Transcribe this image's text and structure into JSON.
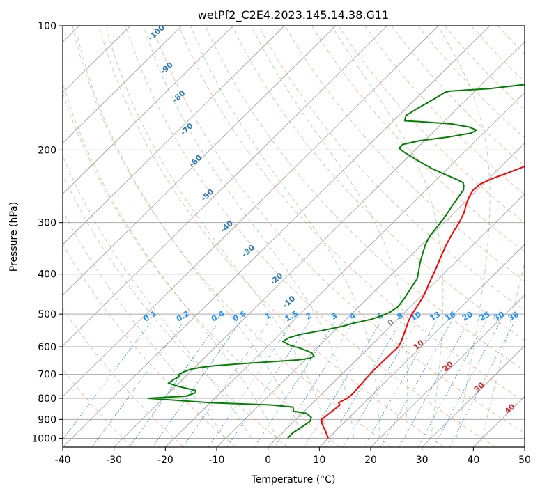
{
  "chart_data": {
    "type": "line",
    "title": "wetPf2_C2E4.2023.145.14.38.G11",
    "xlabel": "Temperature (°C)",
    "ylabel": "Pressure (hPa)",
    "xlim": [
      -40,
      50
    ],
    "ylim_hpa": [
      1050,
      100
    ],
    "y_scale": "log",
    "skew": "skew-T",
    "x_ticks": [
      -40,
      -30,
      -20,
      -10,
      0,
      10,
      20,
      30,
      40,
      50
    ],
    "y_ticks": [
      1000,
      900,
      800,
      700,
      600,
      500,
      400,
      300,
      200,
      100
    ],
    "grid": true,
    "series": [
      {
        "role": "temperature",
        "color": "#ff0000",
        "points": [
          [
            10.0,
            1000
          ],
          [
            8.0,
            960
          ],
          [
            5.8,
            920
          ],
          [
            5.0,
            900
          ],
          [
            5.4,
            860
          ],
          [
            5.7,
            830
          ],
          [
            5.0,
            820
          ],
          [
            5.8,
            800
          ],
          [
            6.0,
            780
          ],
          [
            5.6,
            720
          ],
          [
            5.4,
            680
          ],
          [
            5.5,
            640
          ],
          [
            5.6,
            600
          ],
          [
            5.0,
            580
          ],
          [
            3.8,
            550
          ],
          [
            2.5,
            520
          ],
          [
            1.8,
            500
          ],
          [
            1.3,
            480
          ],
          [
            0.4,
            450
          ],
          [
            -1.0,
            420
          ],
          [
            -2.4,
            390
          ],
          [
            -3.8,
            365
          ],
          [
            -5.2,
            340
          ],
          [
            -6.2,
            320
          ],
          [
            -7.1,
            300
          ],
          [
            -8.0,
            285
          ],
          [
            -9.4,
            270
          ],
          [
            -10.2,
            260
          ],
          [
            -10.8,
            250
          ],
          [
            -10.6,
            242
          ],
          [
            -9.4,
            235
          ],
          [
            -7.6,
            228
          ],
          [
            -6.1,
            222
          ],
          [
            -4.6,
            216
          ],
          [
            -3.0,
            210
          ],
          [
            -2.0,
            206
          ],
          [
            -1.0,
            202
          ],
          [
            0.5,
            196
          ],
          [
            2.2,
            190
          ],
          [
            4.0,
            185
          ],
          [
            6.0,
            180
          ],
          [
            8.6,
            175
          ],
          [
            11.6,
            170
          ],
          [
            14.2,
            164
          ],
          [
            15.8,
            158
          ],
          [
            17.6,
            150
          ],
          [
            19.0,
            143
          ],
          [
            20.0,
            136
          ],
          [
            21.3,
            129
          ],
          [
            23.3,
            122
          ],
          [
            24.6,
            117
          ],
          [
            26.0,
            112
          ],
          [
            26.8,
            108
          ],
          [
            27.4,
            104
          ],
          [
            27.6,
            100
          ]
        ]
      },
      {
        "role": "dewpoint",
        "color": "#008000",
        "points": [
          [
            2.1,
            1000
          ],
          [
            2.0,
            970
          ],
          [
            2.6,
            940
          ],
          [
            3.1,
            910
          ],
          [
            2.6,
            890
          ],
          [
            0.8,
            870
          ],
          [
            -2.1,
            860
          ],
          [
            -3.0,
            840
          ],
          [
            -7.8,
            830
          ],
          [
            -20.0,
            820
          ],
          [
            -33.0,
            800
          ],
          [
            -26.0,
            790
          ],
          [
            -24.8,
            775
          ],
          [
            -25.4,
            765
          ],
          [
            -27.9,
            755
          ],
          [
            -30.2,
            745
          ],
          [
            -32.0,
            735
          ],
          [
            -31.7,
            720
          ],
          [
            -31.2,
            710
          ],
          [
            -31.7,
            700
          ],
          [
            -31.3,
            690
          ],
          [
            -30.4,
            680
          ],
          [
            -28.8,
            673
          ],
          [
            -26.5,
            667
          ],
          [
            -22.0,
            660
          ],
          [
            -16.0,
            652
          ],
          [
            -11.5,
            646
          ],
          [
            -9.4,
            640
          ],
          [
            -9.0,
            632
          ],
          [
            -10.2,
            620
          ],
          [
            -13.0,
            606
          ],
          [
            -16.0,
            594
          ],
          [
            -18.0,
            582
          ],
          [
            -17.5,
            570
          ],
          [
            -16.0,
            560
          ],
          [
            -12.5,
            548
          ],
          [
            -9.5,
            536
          ],
          [
            -7.8,
            526
          ],
          [
            -5.2,
            515
          ],
          [
            -4.2,
            508
          ],
          [
            -2.9,
            496
          ],
          [
            -2.4,
            480
          ],
          [
            -2.8,
            458
          ],
          [
            -3.6,
            430
          ],
          [
            -4.2,
            410
          ],
          [
            -5.5,
            392
          ],
          [
            -6.8,
            375
          ],
          [
            -8.2,
            355
          ],
          [
            -9.4,
            338
          ],
          [
            -10.2,
            322
          ],
          [
            -10.6,
            305
          ],
          [
            -11.0,
            290
          ],
          [
            -11.7,
            275
          ],
          [
            -12.2,
            262
          ],
          [
            -12.7,
            250
          ],
          [
            -13.5,
            244
          ],
          [
            -14.2,
            240
          ],
          [
            -16.0,
            236
          ],
          [
            -19.0,
            230
          ],
          [
            -23.0,
            222
          ],
          [
            -27.5,
            212
          ],
          [
            -31.5,
            203
          ],
          [
            -33.5,
            198
          ],
          [
            -33.5,
            194
          ],
          [
            -31.0,
            190
          ],
          [
            -26.0,
            186
          ],
          [
            -22.4,
            182
          ],
          [
            -22.0,
            179
          ],
          [
            -24.0,
            176
          ],
          [
            -28.0,
            173
          ],
          [
            -34.0,
            171
          ],
          [
            -37.8,
            170
          ],
          [
            -38.6,
            165
          ],
          [
            -37.8,
            159
          ],
          [
            -36.8,
            153
          ],
          [
            -36.0,
            148
          ],
          [
            -35.6,
            145
          ],
          [
            -34.8,
            144
          ],
          [
            -27.6,
            142
          ],
          [
            -18.0,
            137
          ],
          [
            -10.8,
            131
          ],
          [
            -5.8,
            124
          ],
          [
            -2.2,
            116
          ],
          [
            -0.4,
            111
          ],
          [
            1.2,
            106
          ],
          [
            2.6,
            102
          ],
          [
            3.0,
            100
          ]
        ]
      }
    ],
    "dry_adiabat_labels": [
      "-100",
      "-90",
      "-80",
      "-70",
      "-60",
      "-50",
      "-40",
      "-30",
      "-20",
      "-10"
    ],
    "mixing_ratio_labels": [
      "0.1",
      "0.2",
      "0.4",
      "0.6",
      "1",
      "1.5",
      "2",
      "3",
      "4",
      "6",
      "8",
      "10",
      "13",
      "16",
      "20",
      "25",
      "30",
      "36"
    ],
    "moist_adiabat_labels": [
      "0",
      "10",
      "20",
      "30",
      "40"
    ]
  }
}
